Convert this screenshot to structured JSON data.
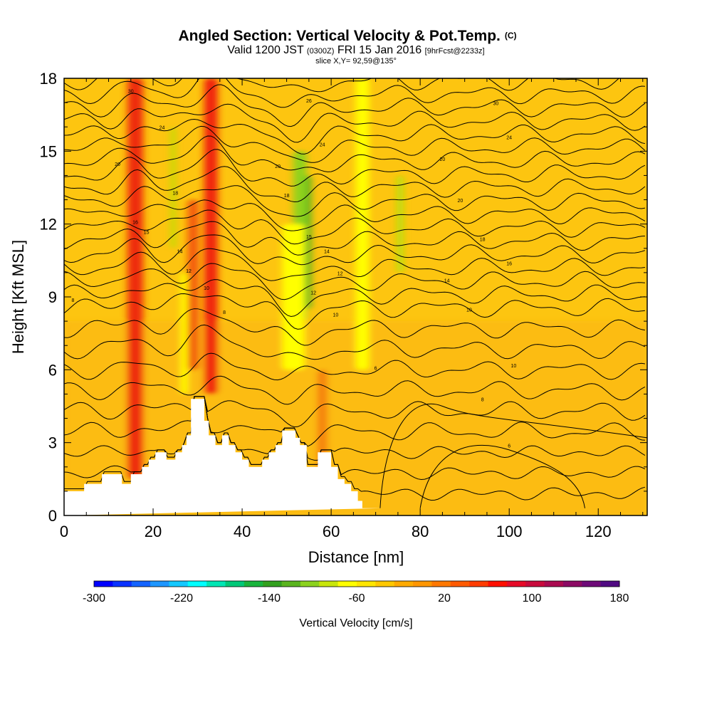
{
  "header": {
    "title": "Angled Section: Vertical Velocity & Pot.Temp.",
    "title_mark": "(C)",
    "valid_prefix": "Valid 1200 JST",
    "valid_utc": "(0300Z)",
    "valid_date": "FRI 15 Jan 2016",
    "forecast_tag": "[9hrFcst@2233z]",
    "slice_info": "slice X,Y= 92,59@135°"
  },
  "chart_data": {
    "type": "heatmap",
    "xlabel": "Distance [nm]",
    "ylabel": "Height [Kft MSL]",
    "xlim": [
      0,
      131
    ],
    "ylim": [
      0,
      18
    ],
    "x_ticks": [
      0,
      20,
      40,
      60,
      80,
      100,
      120
    ],
    "y_ticks": [
      0,
      3,
      6,
      9,
      12,
      15,
      18
    ],
    "x_tick_labels": [
      "0",
      "20",
      "40",
      "60",
      "80",
      "100",
      "120"
    ],
    "y_tick_labels": [
      "0",
      "3",
      "6",
      "9",
      "12",
      "15",
      "18"
    ],
    "background_color": "#fdc510",
    "velocity_features": [
      {
        "x_center": 16,
        "width": 3.5,
        "y_range": [
          1.5,
          18
        ],
        "value": 90,
        "color": "#ee2a0f"
      },
      {
        "x_center": 33,
        "width": 3,
        "y_range": [
          5,
          18
        ],
        "value": 110,
        "color": "#f02010"
      },
      {
        "x_center": 29,
        "width": 2.5,
        "y_range": [
          6,
          13
        ],
        "value": 60,
        "color": "#f35a10"
      },
      {
        "x_center": 24.5,
        "width": 1,
        "y_range": [
          11,
          16
        ],
        "value": -60,
        "color": "#b8e010"
      },
      {
        "x_center": 27,
        "width": 1.5,
        "y_range": [
          5,
          10
        ],
        "value": -20,
        "color": "#ffff00"
      },
      {
        "x_center": 54.5,
        "width": 2,
        "y_range": [
          8.5,
          14
        ],
        "value": -140,
        "color": "#3fae1e"
      },
      {
        "x_center": 53,
        "width": 3,
        "y_range": [
          8,
          15
        ],
        "value": -90,
        "color": "#8fd21a"
      },
      {
        "x_center": 51.5,
        "width": 5,
        "y_range": [
          6,
          12
        ],
        "value": -40,
        "color": "#ffff00"
      },
      {
        "x_center": 58,
        "width": 2,
        "y_range": [
          1.5,
          6
        ],
        "value": 50,
        "color": "#f47a0e"
      },
      {
        "x_center": 75.5,
        "width": 1.5,
        "y_range": [
          10,
          14
        ],
        "value": -60,
        "color": "#b8e010"
      },
      {
        "x_center": 67,
        "width": 3,
        "y_range": [
          6,
          18
        ],
        "value": -20,
        "color": "#ffff00"
      }
    ],
    "terrain_profile": {
      "x": [
        0,
        4.5,
        4.5,
        8.5,
        8.5,
        13,
        13,
        15,
        15,
        17.5,
        17.5,
        19,
        19,
        20.5,
        20.5,
        23,
        23,
        25,
        25,
        26.5,
        26.5,
        27.5,
        27.5,
        28.5,
        28.5,
        31.5,
        31.5,
        32.5,
        32.5,
        34,
        34,
        35.5,
        35.5,
        37,
        37,
        38.5,
        38.5,
        40,
        40,
        41.5,
        41.5,
        44.5,
        44.5,
        46,
        46,
        47.5,
        47.5,
        49,
        49,
        52,
        52,
        53,
        53,
        54.5,
        54.5,
        57,
        57,
        60,
        60,
        61.5,
        61.5,
        63,
        63,
        64.5,
        64.5,
        66,
        66,
        67,
        67,
        70,
        70,
        71.5,
        71.5,
        131
      ],
      "y": [
        1.0,
        1.0,
        1.3,
        1.3,
        1.7,
        1.7,
        1.3,
        1.3,
        1.7,
        1.7,
        2.0,
        2.0,
        2.3,
        2.3,
        2.6,
        2.6,
        2.3,
        2.3,
        2.6,
        2.6,
        2.9,
        2.9,
        3.3,
        3.3,
        4.8,
        4.8,
        3.9,
        3.9,
        3.3,
        3.3,
        2.9,
        2.9,
        3.3,
        3.3,
        2.9,
        2.9,
        2.6,
        2.6,
        2.3,
        2.3,
        2.0,
        2.0,
        2.3,
        2.3,
        2.6,
        2.6,
        2.9,
        2.9,
        3.5,
        3.5,
        3.2,
        3.2,
        2.9,
        2.9,
        2.0,
        2.0,
        2.6,
        2.6,
        2.0,
        2.0,
        1.5,
        1.5,
        1.3,
        1.3,
        1.0,
        1.0,
        0.6,
        0.6,
        0.3,
        0.3,
        0.3,
        0.3
      ]
    },
    "contour_labels": [
      {
        "x": 15,
        "y": 17.4,
        "text": "30"
      },
      {
        "x": 55,
        "y": 17.0,
        "text": "26"
      },
      {
        "x": 97,
        "y": 16.9,
        "text": "30"
      },
      {
        "x": 22,
        "y": 15.9,
        "text": "24"
      },
      {
        "x": 58,
        "y": 15.2,
        "text": "24"
      },
      {
        "x": 100,
        "y": 15.5,
        "text": "24"
      },
      {
        "x": 12,
        "y": 14.4,
        "text": "20"
      },
      {
        "x": 48,
        "y": 14.3,
        "text": "20"
      },
      {
        "x": 85,
        "y": 14.6,
        "text": "20"
      },
      {
        "x": 25,
        "y": 13.2,
        "text": "18"
      },
      {
        "x": 50,
        "y": 13.1,
        "text": "18"
      },
      {
        "x": 89,
        "y": 12.9,
        "text": "20"
      },
      {
        "x": 16,
        "y": 12.0,
        "text": "16"
      },
      {
        "x": 18.5,
        "y": 11.6,
        "text": "15"
      },
      {
        "x": 55,
        "y": 11.4,
        "text": "15"
      },
      {
        "x": 94,
        "y": 11.3,
        "text": "18"
      },
      {
        "x": 26,
        "y": 10.8,
        "text": "14"
      },
      {
        "x": 59,
        "y": 10.8,
        "text": "14"
      },
      {
        "x": 100,
        "y": 10.3,
        "text": "16"
      },
      {
        "x": 28,
        "y": 10.0,
        "text": "12"
      },
      {
        "x": 62,
        "y": 9.9,
        "text": "12"
      },
      {
        "x": 86,
        "y": 9.6,
        "text": "14"
      },
      {
        "x": 2,
        "y": 8.8,
        "text": "8"
      },
      {
        "x": 32,
        "y": 9.3,
        "text": "10"
      },
      {
        "x": 56,
        "y": 9.1,
        "text": "12"
      },
      {
        "x": 36,
        "y": 8.3,
        "text": "8"
      },
      {
        "x": 61,
        "y": 8.2,
        "text": "10"
      },
      {
        "x": 91,
        "y": 8.4,
        "text": "10"
      },
      {
        "x": 70,
        "y": 6.0,
        "text": "6"
      },
      {
        "x": 101,
        "y": 6.1,
        "text": "10"
      },
      {
        "x": 94,
        "y": 4.7,
        "text": "8"
      },
      {
        "x": 100,
        "y": 2.8,
        "text": "6"
      }
    ]
  },
  "colorbar": {
    "title": "Vertical Velocity [cm/s]",
    "labels": [
      "-300",
      "-220",
      "-140",
      "-60",
      "20",
      "100",
      "180"
    ],
    "min": -300,
    "max": 180,
    "colors": [
      "#0000ff",
      "#0a32ff",
      "#1464ff",
      "#1e96ff",
      "#14c8ff",
      "#00ffff",
      "#00e6b4",
      "#00c878",
      "#19b43c",
      "#32a01e",
      "#5ab41e",
      "#8cd21e",
      "#c8e60a",
      "#ffff00",
      "#ffe600",
      "#ffc800",
      "#ffaa00",
      "#ff9600",
      "#ff7800",
      "#ff5a00",
      "#ff3c00",
      "#ff0f00",
      "#e60a28",
      "#c80a3c",
      "#aa0a50",
      "#8c0a64",
      "#6e0a78",
      "#500a82"
    ]
  }
}
